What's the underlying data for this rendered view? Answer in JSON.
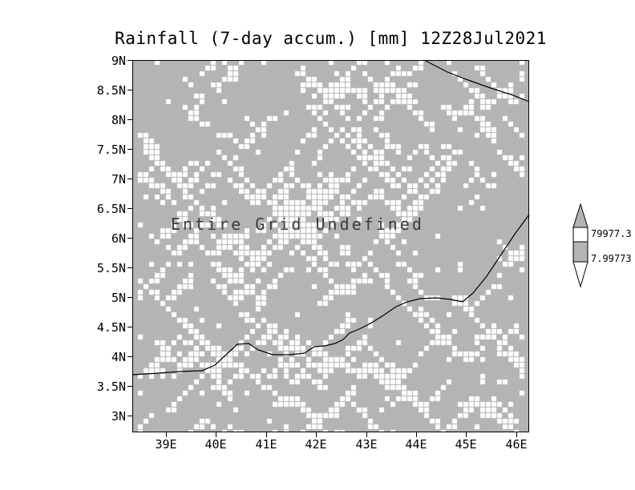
{
  "title": "Rainfall (7-day accum.) [mm] 12Z28Jul2021",
  "map": {
    "undefined_label": "Entire Grid Undefined"
  },
  "axes": {
    "y_ticks": [
      "9N",
      "8.5N",
      "8N",
      "7.5N",
      "7N",
      "6.5N",
      "6N",
      "5.5N",
      "5N",
      "4.5N",
      "4N",
      "3.5N",
      "3N"
    ],
    "x_ticks": [
      "39E",
      "40E",
      "41E",
      "42E",
      "43E",
      "44E",
      "45E",
      "46E"
    ]
  },
  "colorbar": {
    "top_label": "79977.3",
    "bottom_label": "7.99773"
  },
  "colors": {
    "grid_gray": "#b4b4b4",
    "speckle": "#ffffff"
  },
  "chart_data": {
    "type": "heatmap",
    "title": "Rainfall (7-day accum.) [mm] 12Z28Jul2021",
    "status": "Entire Grid Undefined",
    "x_tick_labels": [
      "39E",
      "40E",
      "41E",
      "42E",
      "43E",
      "44E",
      "45E",
      "46E"
    ],
    "y_tick_labels": [
      "9N",
      "8.5N",
      "8N",
      "7.5N",
      "7N",
      "6.5N",
      "6N",
      "5.5N",
      "5N",
      "4.5N",
      "4N",
      "3.5N",
      "3N"
    ],
    "x_range_deg_east": [
      38.3,
      46.25
    ],
    "y_range_deg_north": [
      2.7,
      9.0
    ],
    "values": null,
    "note": "All grid values undefined; plot area rendered as gray background with white undefined speckle texture",
    "colorbar_values": [
      79977.3,
      7.99773
    ],
    "legend_position": "right",
    "grid": false
  }
}
